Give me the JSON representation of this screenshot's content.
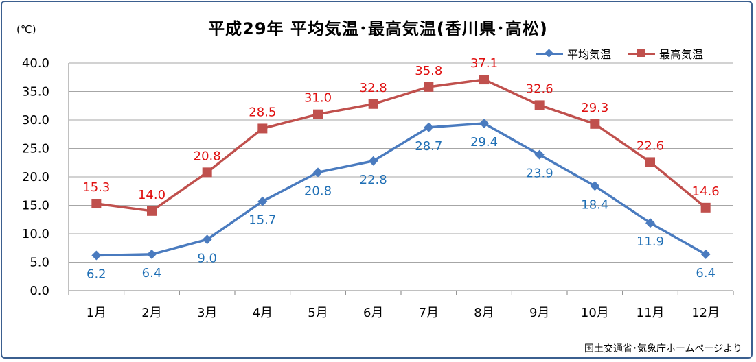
{
  "title": "平成29年  平均気温･最高気温(香川県･高松)",
  "unit_label": "(℃)",
  "source": "国土交通省･気象庁ホームページより",
  "colors": {
    "avg": "#4a7bbf",
    "max": "#c0504d",
    "avg_label": "#1f6fb5",
    "max_label": "#e01010",
    "grid": "#a6a6a6",
    "frame": "#3b5f8f"
  },
  "chart_data": {
    "type": "line",
    "title": "平成29年  平均気温･最高気温(香川県･高松)",
    "xlabel": "",
    "ylabel": "(℃)",
    "ylim": [
      0,
      40
    ],
    "y_ticks": [
      "0.0",
      "5.0",
      "10.0",
      "15.0",
      "20.0",
      "25.0",
      "30.0",
      "35.0",
      "40.0"
    ],
    "categories": [
      "1月",
      "2月",
      "3月",
      "4月",
      "5月",
      "6月",
      "7月",
      "8月",
      "9月",
      "10月",
      "11月",
      "12月"
    ],
    "series": [
      {
        "name": "平均気温",
        "marker": "diamond",
        "values": [
          6.2,
          6.4,
          9.0,
          15.7,
          20.8,
          22.8,
          28.7,
          29.4,
          23.9,
          18.4,
          11.9,
          6.4
        ],
        "labels": [
          "6.2",
          "6.4",
          "9.0",
          "15.7",
          "20.8",
          "22.8",
          "28.7",
          "29.4",
          "23.9",
          "18.4",
          "11.9",
          "6.4"
        ]
      },
      {
        "name": "最高気温",
        "marker": "square",
        "values": [
          15.3,
          14.0,
          20.8,
          28.5,
          31.0,
          32.8,
          35.8,
          37.1,
          32.6,
          29.3,
          22.6,
          14.6
        ],
        "labels": [
          "15.3",
          "14.0",
          "20.8",
          "28.5",
          "31.0",
          "32.8",
          "35.8",
          "37.1",
          "32.6",
          "29.3",
          "22.6",
          "14.6"
        ]
      }
    ],
    "grid": true,
    "legend": "top-right"
  }
}
